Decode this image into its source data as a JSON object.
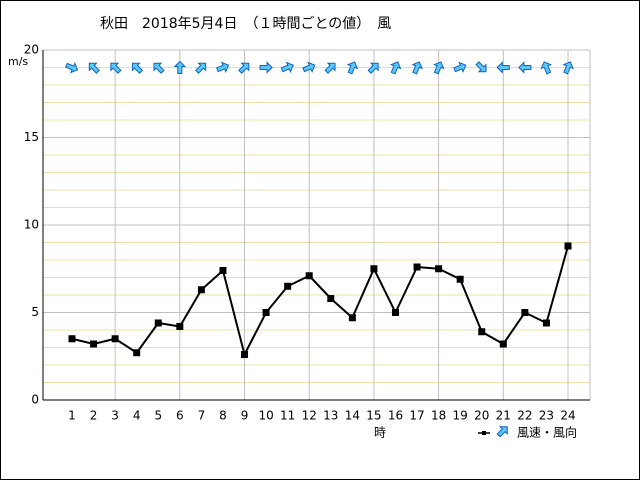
{
  "chart_data": {
    "type": "line",
    "title": "秋田　2018年5月4日　（１時間ごとの値）　風",
    "y_unit": "m/s",
    "x_label": "時",
    "legend_label": "風速・風向",
    "categories": [
      "1",
      "2",
      "3",
      "4",
      "5",
      "6",
      "7",
      "8",
      "9",
      "10",
      "11",
      "12",
      "13",
      "14",
      "15",
      "16",
      "17",
      "18",
      "19",
      "20",
      "21",
      "22",
      "23",
      "24"
    ],
    "series": [
      {
        "name": "風速",
        "color": "#000000",
        "values": [
          3.5,
          3.2,
          3.5,
          2.7,
          4.4,
          4.2,
          6.3,
          7.4,
          2.6,
          5.0,
          6.5,
          7.1,
          5.8,
          4.7,
          7.5,
          5.0,
          7.6,
          7.5,
          6.9,
          3.9,
          3.2,
          5.0,
          4.4,
          8.8
        ]
      }
    ],
    "direction_deg": [
      112.5,
      315,
      315,
      315,
      315,
      0,
      45,
      67.5,
      45,
      90,
      67.5,
      67.5,
      45,
      22.5,
      45,
      22.5,
      22.5,
      22.5,
      67.5,
      135,
      270,
      270,
      337.5,
      22.5
    ],
    "ylim": [
      0,
      20
    ],
    "yticks": [
      0,
      5,
      10,
      15,
      20
    ],
    "yminor": [
      1,
      2,
      3,
      4,
      6,
      7,
      8,
      9,
      11,
      12,
      13,
      14,
      16,
      17,
      18,
      19
    ],
    "grid": true
  }
}
